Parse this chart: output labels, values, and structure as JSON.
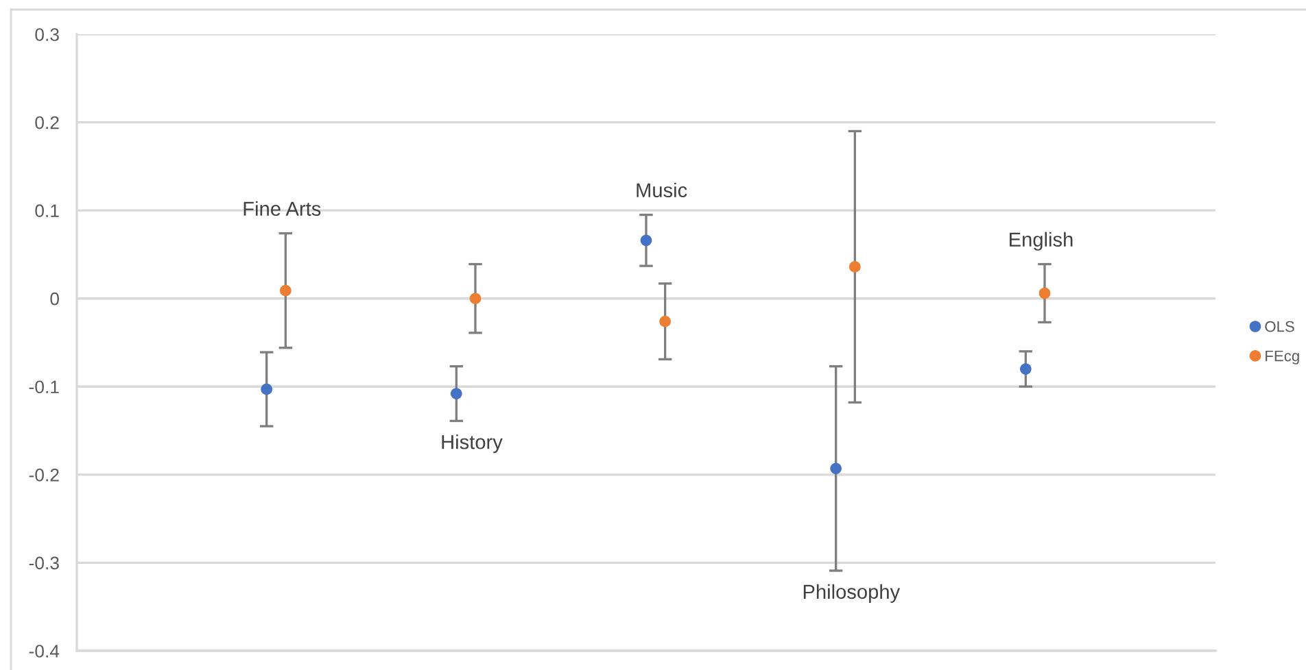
{
  "chart_data": {
    "type": "scatter",
    "categories": [
      null,
      null,
      null,
      null,
      null
    ],
    "series": [
      {
        "name": "OLS",
        "color": "#4472c4",
        "values": [
          -0.103,
          -0.108,
          0.066,
          -0.193,
          -0.08
        ],
        "errors": [
          0.042,
          0.031,
          0.029,
          0.116,
          0.02
        ]
      },
      {
        "name": "FEcg",
        "color": "#ed7d31",
        "values": [
          0.009,
          0,
          -0.026,
          0.036,
          0.006
        ],
        "errors": [
          0.065,
          0.039,
          0.043,
          0.154,
          0.033
        ]
      }
    ],
    "ylim": [
      -0.4,
      0.3
    ],
    "yticks": [
      -0.4,
      -0.3,
      -0.2,
      -0.1,
      0,
      0.1,
      0.2,
      0.3
    ],
    "grid": "y",
    "legend": "right",
    "marker": "circle",
    "tick_labels": "y",
    "annotations": [
      "Fine Arts",
      "History",
      "Music",
      "Philosophy",
      "English"
    ]
  }
}
